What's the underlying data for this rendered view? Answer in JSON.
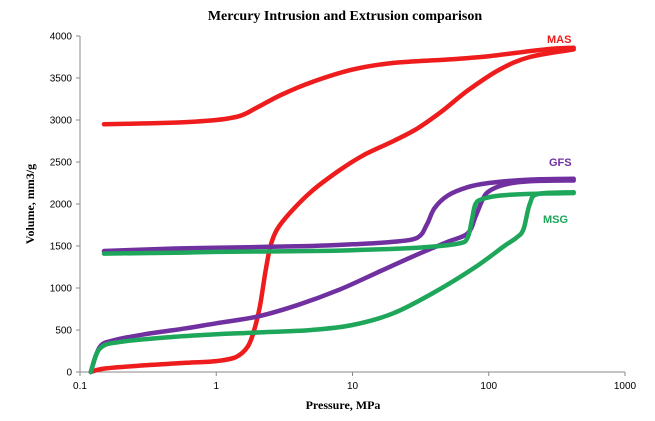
{
  "chart_data": {
    "type": "line",
    "title": "Mercury Intrusion and Extrusion comparison",
    "xlabel": "Pressure,  MPa",
    "ylabel": "Volume, mm3/g",
    "x_scale": "log",
    "xlim": [
      0.1,
      1000
    ],
    "ylim": [
      0,
      4000
    ],
    "x_ticks": [
      0.1,
      1,
      10,
      100,
      1000
    ],
    "x_tick_labels": [
      "0.1",
      "1",
      "10",
      "100",
      "1000"
    ],
    "y_ticks": [
      0,
      500,
      1000,
      1500,
      2000,
      2500,
      3000,
      3500,
      4000
    ],
    "y_tick_labels": [
      "0",
      "500",
      "1000",
      "1500",
      "2000",
      "2500",
      "3000",
      "3500",
      "4000"
    ],
    "grid": false,
    "series": [
      {
        "name": "MAS",
        "color": "#ee1c1c",
        "curves": [
          {
            "kind": "intrusion",
            "x": [
              0.12,
              0.15,
              0.3,
              0.6,
              1.0,
              1.4,
              1.7,
              1.9,
              2.1,
              2.3,
              2.5,
              2.8,
              3.5,
              5,
              8,
              12,
              20,
              30,
              45,
              70,
              120,
              200,
              420
            ],
            "y": [
              0,
              40,
              80,
              110,
              130,
              180,
              300,
              500,
              800,
              1200,
              1500,
              1700,
              1900,
              2150,
              2400,
              2580,
              2750,
              2900,
              3100,
              3350,
              3600,
              3750,
              3840
            ]
          },
          {
            "kind": "extrusion",
            "x": [
              0.15,
              0.3,
              0.6,
              1.0,
              1.5,
              2,
              3,
              5,
              10,
              20,
              50,
              100,
              200,
              300,
              420
            ],
            "y": [
              2950,
              2960,
              2975,
              3000,
              3050,
              3150,
              3300,
              3450,
              3600,
              3680,
              3720,
              3760,
              3820,
              3850,
              3860
            ]
          }
        ]
      },
      {
        "name": "GFS",
        "color": "#7030a0",
        "curves": [
          {
            "kind": "intrusion",
            "x": [
              0.12,
              0.14,
              0.18,
              0.3,
              0.6,
              1.0,
              2,
              4,
              8,
              15,
              30,
              50,
              70,
              80,
              90,
              100,
              130,
              200,
              420
            ],
            "y": [
              0,
              300,
              380,
              450,
              520,
              580,
              660,
              800,
              980,
              1180,
              1400,
              1550,
              1650,
              1850,
              2050,
              2150,
              2230,
              2270,
              2280
            ]
          },
          {
            "kind": "extrusion",
            "x": [
              0.15,
              0.5,
              1,
              5,
              10,
              20,
              30,
              35,
              40,
              50,
              70,
              100,
              200,
              420
            ],
            "y": [
              1440,
              1470,
              1480,
              1500,
              1520,
              1550,
              1600,
              1750,
              1950,
              2100,
              2200,
              2250,
              2290,
              2300
            ]
          }
        ]
      },
      {
        "name": "MSG",
        "color": "#1ea65a",
        "curves": [
          {
            "kind": "intrusion",
            "x": [
              0.12,
              0.14,
              0.2,
              0.5,
              1,
              2,
              5,
              10,
              20,
              40,
              80,
              130,
              160,
              180,
              200,
              230,
              420
            ],
            "y": [
              0,
              280,
              360,
              420,
              450,
              470,
              500,
              560,
              700,
              950,
              1250,
              1500,
              1600,
              1700,
              2000,
              2120,
              2140
            ]
          },
          {
            "kind": "extrusion",
            "x": [
              0.15,
              0.5,
              1,
              5,
              10,
              30,
              60,
              70,
              75,
              80,
              90,
              120,
              200,
              420
            ],
            "y": [
              1410,
              1420,
              1430,
              1440,
              1450,
              1480,
              1530,
              1600,
              1800,
              2000,
              2060,
              2100,
              2120,
              2130
            ]
          }
        ]
      }
    ],
    "series_labels": [
      {
        "text": "MAS",
        "color": "#ee1c1c"
      },
      {
        "text": "GFS",
        "color": "#7030a0"
      },
      {
        "text": "MSG",
        "color": "#1ea65a"
      }
    ]
  }
}
